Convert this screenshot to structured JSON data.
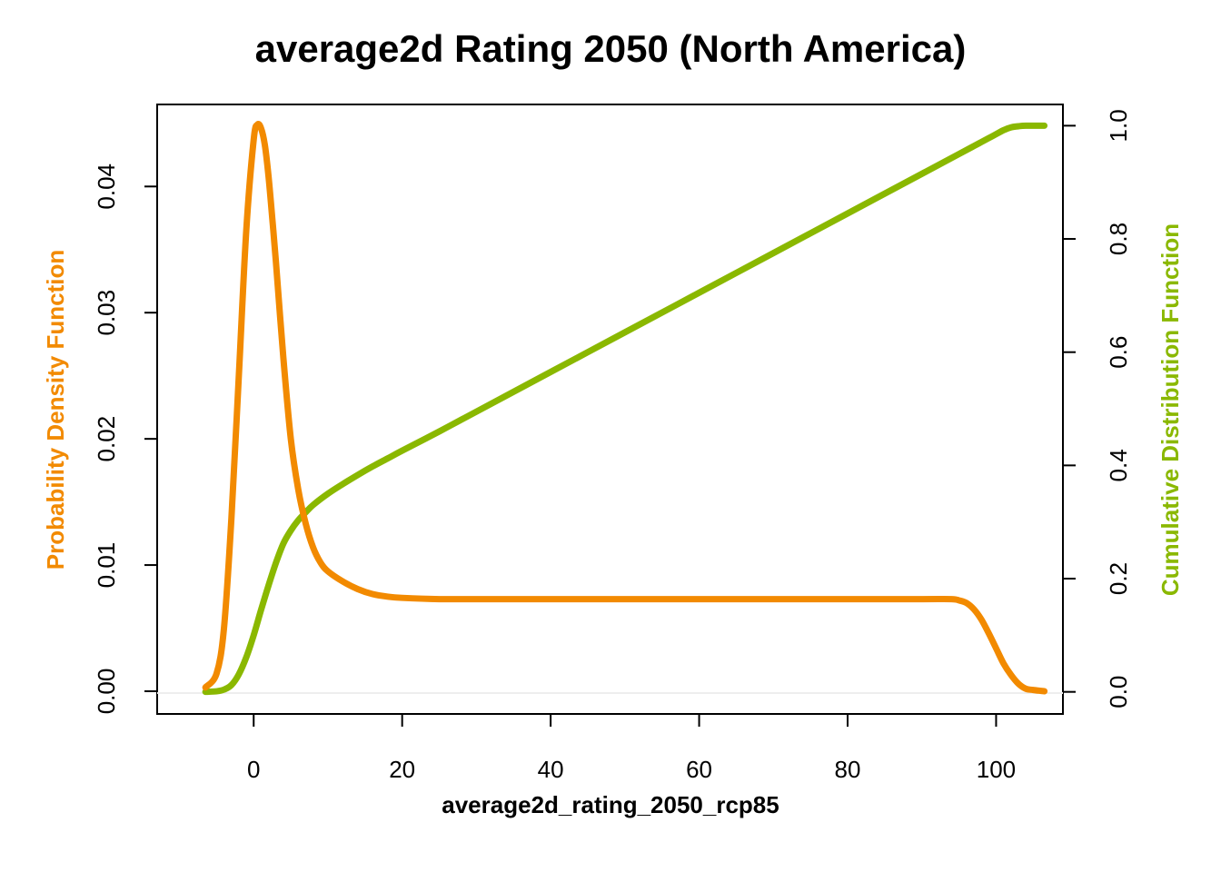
{
  "chart_data": {
    "type": "line",
    "title": "average2d Rating 2050 (North America)",
    "xlabel": "average2d_rating_2050_rcp85",
    "ylabel_left": "Probability Density Function",
    "ylabel_right": "Cumulative Distribution Function",
    "xlim": [
      -13,
      109
    ],
    "ylim_left": [
      -0.0018,
      0.0465
    ],
    "ylim_right": [
      -0.039,
      1.0375
    ],
    "x_ticks": [
      0,
      20,
      40,
      60,
      80,
      100
    ],
    "y_left_ticks": [
      0.0,
      0.01,
      0.02,
      0.03,
      0.04
    ],
    "y_left_tick_labels": [
      "0.00",
      "0.01",
      "0.02",
      "0.03",
      "0.04"
    ],
    "y_right_ticks": [
      0.0,
      0.2,
      0.4,
      0.6,
      0.8,
      1.0
    ],
    "y_right_tick_labels": [
      "0.0",
      "0.2",
      "0.4",
      "0.6",
      "0.8",
      "1.0"
    ],
    "colors": {
      "pdf": "#F28A00",
      "cdf": "#8AB800",
      "baseline": "#eeeeee"
    },
    "series": [
      {
        "name": "Probability Density Function",
        "axis": "left",
        "x": [
          -6.5,
          -5,
          -4,
          -3,
          -2,
          -1,
          0,
          0.5,
          1,
          1.5,
          2,
          2.5,
          3,
          4,
          5,
          6,
          7,
          8,
          9,
          10,
          12,
          14,
          16,
          18,
          20,
          25,
          30,
          40,
          50,
          60,
          70,
          80,
          90,
          94,
          95,
          96,
          97,
          98,
          99,
          100,
          101,
          102,
          103,
          104,
          105,
          106.5
        ],
        "values": [
          0.0003,
          0.0014,
          0.005,
          0.0137,
          0.025,
          0.0365,
          0.0437,
          0.0449,
          0.0446,
          0.0433,
          0.0408,
          0.0375,
          0.034,
          0.0264,
          0.02,
          0.016,
          0.0133,
          0.0114,
          0.0102,
          0.0095,
          0.0087,
          0.0081,
          0.0077,
          0.0075,
          0.0074,
          0.0073,
          0.0073,
          0.0073,
          0.0073,
          0.0073,
          0.0073,
          0.0073,
          0.0073,
          0.0073,
          0.0072,
          0.007,
          0.0065,
          0.0057,
          0.0046,
          0.0034,
          0.0022,
          0.0013,
          0.0006,
          0.0002,
          0.0001,
          0.0
        ]
      },
      {
        "name": "Cumulative Distribution Function",
        "axis": "right",
        "x": [
          -6.5,
          -5,
          -4,
          -3,
          -2,
          -1,
          0,
          1,
          2,
          3,
          4,
          5,
          6,
          7,
          8,
          10,
          12,
          14,
          16,
          18,
          20,
          25,
          30,
          40,
          50,
          60,
          70,
          80,
          90,
          95,
          97,
          98,
          99,
          100,
          101,
          102,
          103,
          104,
          106.5
        ],
        "values": [
          0.0,
          0.001,
          0.004,
          0.012,
          0.031,
          0.061,
          0.1,
          0.145,
          0.188,
          0.228,
          0.262,
          0.285,
          0.303,
          0.317,
          0.33,
          0.35,
          0.367,
          0.383,
          0.398,
          0.412,
          0.426,
          0.46,
          0.495,
          0.565,
          0.635,
          0.705,
          0.775,
          0.845,
          0.915,
          0.95,
          0.964,
          0.971,
          0.978,
          0.985,
          0.992,
          0.997,
          0.999,
          1.0,
          1.0
        ]
      }
    ]
  }
}
